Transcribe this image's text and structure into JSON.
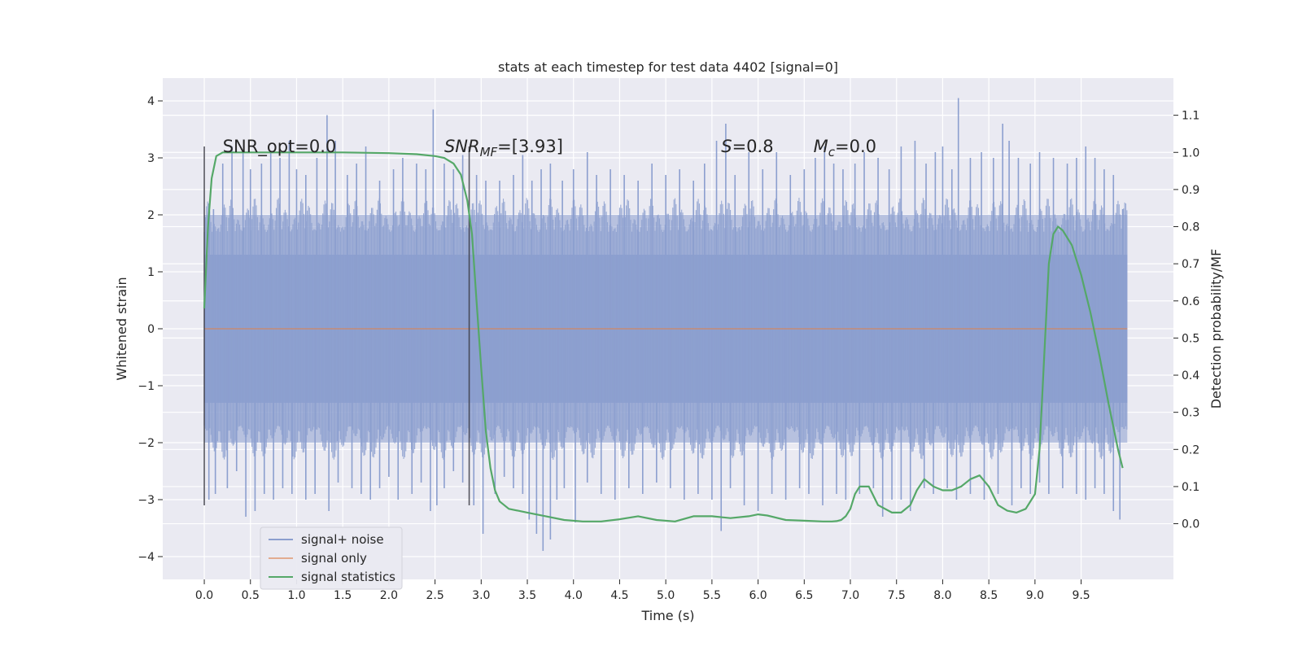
{
  "chart_data": {
    "type": "line",
    "title": "stats at each timestep for test data 4402 [signal=0]",
    "xlabel": "Time (s)",
    "ylabel_left": "Whitened strain",
    "ylabel_right": "Detection probability/MF",
    "xlim": [
      -0.45,
      10.5
    ],
    "ylim_left": [
      -4.4,
      4.4
    ],
    "ylim_right": [
      -0.15,
      1.2
    ],
    "xticks": [
      "0.0",
      "0.5",
      "1.0",
      "1.5",
      "2.0",
      "2.5",
      "3.0",
      "3.5",
      "4.0",
      "4.5",
      "5.0",
      "5.5",
      "6.0",
      "6.5",
      "7.0",
      "7.5",
      "8.0",
      "8.5",
      "9.0",
      "9.5"
    ],
    "yticks_left": [
      "4",
      "3",
      "2",
      "1",
      "0",
      "−1",
      "−2",
      "−3",
      "−4"
    ],
    "yticks_right": [
      "1.1",
      "1.0",
      "0.9",
      "0.8",
      "0.7",
      "0.6",
      "0.5",
      "0.4",
      "0.3",
      "0.2",
      "0.1",
      "0.0"
    ],
    "grid": true,
    "legend_position": "lower-left",
    "annotations": [
      {
        "text": "SNR_opt=0.0",
        "x": 0.2,
        "y": 3.1
      },
      {
        "text": "SNR_MF=[3.93]",
        "x": 2.6,
        "y": 3.1,
        "main": "SNR",
        "sub": "MF",
        "tail": "=[3.93]"
      },
      {
        "text": "S=0.8",
        "x": 5.6,
        "y": 3.1,
        "main": "S",
        "tail": "=0.8"
      },
      {
        "text": "M_c=0.0",
        "x": 6.6,
        "y": 3.1,
        "main": "M",
        "sub": "c",
        "tail": "=0.0"
      }
    ],
    "vlines": [
      {
        "x": 0.0,
        "y0": -3.1,
        "y1": 3.2
      },
      {
        "x": 2.87,
        "y0": -3.1,
        "y1": 3.2
      }
    ],
    "series": [
      {
        "name": "signal+ noise",
        "color": "#8c9fcf",
        "x_range": [
          0.0,
          10.0
        ],
        "band_1sigma": [
          -1.3,
          1.3
        ],
        "band_2sigma": [
          -2.0,
          2.0
        ],
        "spikes_up": [
          [
            0.05,
            2.2
          ],
          [
            0.1,
            2.1
          ],
          [
            0.2,
            2.9
          ],
          [
            0.3,
            3.2
          ],
          [
            0.42,
            3.1
          ],
          [
            0.5,
            2.8
          ],
          [
            0.62,
            2.9
          ],
          [
            0.72,
            3.1
          ],
          [
            0.82,
            3.0
          ],
          [
            0.92,
            3.3
          ],
          [
            1.0,
            2.8
          ],
          [
            1.1,
            2.7
          ],
          [
            1.22,
            3.0
          ],
          [
            1.33,
            3.75
          ],
          [
            1.42,
            3.3
          ],
          [
            1.55,
            2.7
          ],
          [
            1.65,
            2.9
          ],
          [
            1.75,
            3.2
          ],
          [
            1.9,
            2.6
          ],
          [
            2.05,
            2.8
          ],
          [
            2.15,
            3.0
          ],
          [
            2.3,
            2.9
          ],
          [
            2.4,
            2.8
          ],
          [
            2.48,
            3.85
          ],
          [
            2.6,
            2.9
          ],
          [
            2.7,
            2.8
          ],
          [
            2.8,
            3.05
          ],
          [
            2.95,
            2.7
          ],
          [
            3.05,
            2.6
          ],
          [
            3.2,
            2.6
          ],
          [
            3.35,
            2.7
          ],
          [
            3.45,
            3.05
          ],
          [
            3.55,
            2.6
          ],
          [
            3.65,
            2.8
          ],
          [
            3.75,
            2.9
          ],
          [
            3.88,
            2.6
          ],
          [
            4.0,
            2.8
          ],
          [
            4.15,
            3.1
          ],
          [
            4.25,
            2.7
          ],
          [
            4.4,
            2.8
          ],
          [
            4.55,
            2.7
          ],
          [
            4.7,
            2.6
          ],
          [
            4.85,
            2.9
          ],
          [
            5.0,
            2.7
          ],
          [
            5.15,
            2.8
          ],
          [
            5.3,
            2.6
          ],
          [
            5.42,
            2.9
          ],
          [
            5.55,
            3.3
          ],
          [
            5.65,
            3.6
          ],
          [
            5.75,
            2.7
          ],
          [
            5.9,
            3.1
          ],
          [
            6.05,
            2.8
          ],
          [
            6.2,
            3.1
          ],
          [
            6.35,
            2.7
          ],
          [
            6.5,
            2.8
          ],
          [
            6.62,
            3.0
          ],
          [
            6.72,
            3.2
          ],
          [
            6.82,
            2.9
          ],
          [
            6.92,
            2.8
          ],
          [
            7.05,
            2.9
          ],
          [
            7.15,
            3.1
          ],
          [
            7.3,
            3.0
          ],
          [
            7.42,
            2.8
          ],
          [
            7.55,
            3.2
          ],
          [
            7.7,
            3.3
          ],
          [
            7.82,
            2.9
          ],
          [
            7.92,
            3.1
          ],
          [
            8.0,
            3.2
          ],
          [
            8.1,
            2.8
          ],
          [
            8.17,
            4.05
          ],
          [
            8.3,
            3.0
          ],
          [
            8.42,
            3.1
          ],
          [
            8.55,
            3.0
          ],
          [
            8.65,
            3.6
          ],
          [
            8.72,
            3.3
          ],
          [
            8.82,
            3.0
          ],
          [
            8.95,
            2.9
          ],
          [
            9.05,
            3.1
          ],
          [
            9.2,
            3.0
          ],
          [
            9.35,
            2.9
          ],
          [
            9.45,
            3.0
          ],
          [
            9.55,
            3.2
          ],
          [
            9.65,
            3.0
          ],
          [
            9.75,
            2.8
          ],
          [
            9.85,
            2.7
          ],
          [
            9.95,
            2.1
          ]
        ],
        "spikes_down": [
          [
            0.05,
            -3.0
          ],
          [
            0.12,
            -2.9
          ],
          [
            0.25,
            -2.8
          ],
          [
            0.35,
            -2.5
          ],
          [
            0.45,
            -3.3
          ],
          [
            0.55,
            -3.2
          ],
          [
            0.65,
            -2.9
          ],
          [
            0.75,
            -3.0
          ],
          [
            0.85,
            -2.8
          ],
          [
            0.95,
            -2.9
          ],
          [
            1.1,
            -3.0
          ],
          [
            1.2,
            -2.9
          ],
          [
            1.35,
            -3.2
          ],
          [
            1.45,
            -2.7
          ],
          [
            1.6,
            -2.8
          ],
          [
            1.7,
            -2.9
          ],
          [
            1.8,
            -3.0
          ],
          [
            1.9,
            -2.8
          ],
          [
            2.0,
            -2.6
          ],
          [
            2.1,
            -3.0
          ],
          [
            2.25,
            -2.9
          ],
          [
            2.35,
            -2.7
          ],
          [
            2.45,
            -3.2
          ],
          [
            2.52,
            -3.1
          ],
          [
            2.6,
            -2.8
          ],
          [
            2.7,
            -2.5
          ],
          [
            2.8,
            -2.7
          ],
          [
            2.92,
            -3.1
          ],
          [
            3.02,
            -3.6
          ],
          [
            3.15,
            -2.9
          ],
          [
            3.25,
            -2.6
          ],
          [
            3.35,
            -2.8
          ],
          [
            3.45,
            -2.9
          ],
          [
            3.52,
            -3.35
          ],
          [
            3.6,
            -3.6
          ],
          [
            3.67,
            -3.9
          ],
          [
            3.75,
            -3.7
          ],
          [
            3.82,
            -3.0
          ],
          [
            3.9,
            -2.8
          ],
          [
            4.02,
            -3.4
          ],
          [
            4.15,
            -2.7
          ],
          [
            4.3,
            -2.9
          ],
          [
            4.45,
            -3.0
          ],
          [
            4.6,
            -2.8
          ],
          [
            4.75,
            -2.9
          ],
          [
            4.9,
            -2.7
          ],
          [
            5.05,
            -2.8
          ],
          [
            5.2,
            -3.0
          ],
          [
            5.35,
            -2.9
          ],
          [
            5.5,
            -3.0
          ],
          [
            5.6,
            -3.55
          ],
          [
            5.7,
            -2.8
          ],
          [
            5.85,
            -3.1
          ],
          [
            6.0,
            -3.2
          ],
          [
            6.15,
            -2.9
          ],
          [
            6.3,
            -3.0
          ],
          [
            6.45,
            -2.8
          ],
          [
            6.55,
            -2.9
          ],
          [
            6.7,
            -3.1
          ],
          [
            6.85,
            -2.9
          ],
          [
            6.95,
            -3.0
          ],
          [
            7.1,
            -2.9
          ],
          [
            7.25,
            -2.8
          ],
          [
            7.35,
            -3.3
          ],
          [
            7.45,
            -3.0
          ],
          [
            7.55,
            -3.0
          ],
          [
            7.65,
            -3.2
          ],
          [
            7.8,
            -2.8
          ],
          [
            7.9,
            -2.9
          ],
          [
            8.05,
            -2.8
          ],
          [
            8.15,
            -3.0
          ],
          [
            8.3,
            -2.9
          ],
          [
            8.45,
            -3.0
          ],
          [
            8.6,
            -2.9
          ],
          [
            8.75,
            -3.1
          ],
          [
            8.85,
            -2.8
          ],
          [
            8.95,
            -2.9
          ],
          [
            9.05,
            -2.7
          ],
          [
            9.15,
            -2.9
          ],
          [
            9.3,
            -2.8
          ],
          [
            9.45,
            -2.9
          ],
          [
            9.55,
            -3.0
          ],
          [
            9.65,
            -2.8
          ],
          [
            9.75,
            -2.9
          ],
          [
            9.85,
            -3.2
          ],
          [
            9.92,
            -3.35
          ]
        ]
      },
      {
        "name": "signal only",
        "color": "#dd8452",
        "x": [
          0.0,
          10.0
        ],
        "y": [
          0.0,
          0.0
        ]
      },
      {
        "name": "signal statistics",
        "color": "#55a868",
        "axis": "right",
        "x": [
          0.0,
          0.04,
          0.08,
          0.13,
          0.2,
          0.3,
          0.5,
          1.0,
          1.5,
          2.0,
          2.3,
          2.5,
          2.6,
          2.7,
          2.78,
          2.85,
          2.9,
          2.95,
          3.0,
          3.05,
          3.1,
          3.15,
          3.2,
          3.3,
          3.4,
          3.5,
          3.7,
          3.9,
          4.1,
          4.3,
          4.5,
          4.7,
          4.9,
          5.1,
          5.3,
          5.5,
          5.7,
          5.9,
          6.0,
          6.1,
          6.3,
          6.5,
          6.7,
          6.8,
          6.85,
          6.9,
          6.95,
          7.0,
          7.05,
          7.1,
          7.2,
          7.3,
          7.45,
          7.55,
          7.65,
          7.72,
          7.8,
          7.9,
          8.0,
          8.1,
          8.2,
          8.3,
          8.4,
          8.5,
          8.6,
          8.7,
          8.8,
          8.9,
          9.0,
          9.05,
          9.1,
          9.15,
          9.2,
          9.25,
          9.3,
          9.4,
          9.5,
          9.6,
          9.7,
          9.8,
          9.9,
          9.95
        ],
        "y": [
          0.58,
          0.8,
          0.93,
          0.99,
          1.0,
          1.0,
          1.0,
          1.0,
          1.0,
          0.998,
          0.995,
          0.99,
          0.985,
          0.97,
          0.94,
          0.87,
          0.78,
          0.6,
          0.42,
          0.25,
          0.15,
          0.09,
          0.06,
          0.04,
          0.035,
          0.03,
          0.02,
          0.01,
          0.006,
          0.006,
          0.012,
          0.02,
          0.01,
          0.006,
          0.02,
          0.02,
          0.015,
          0.02,
          0.025,
          0.022,
          0.01,
          0.008,
          0.006,
          0.006,
          0.007,
          0.01,
          0.02,
          0.04,
          0.08,
          0.1,
          0.1,
          0.05,
          0.03,
          0.03,
          0.05,
          0.09,
          0.12,
          0.1,
          0.09,
          0.09,
          0.1,
          0.12,
          0.13,
          0.1,
          0.05,
          0.035,
          0.03,
          0.04,
          0.08,
          0.2,
          0.45,
          0.7,
          0.78,
          0.8,
          0.79,
          0.75,
          0.67,
          0.57,
          0.45,
          0.32,
          0.2,
          0.15
        ]
      }
    ]
  }
}
